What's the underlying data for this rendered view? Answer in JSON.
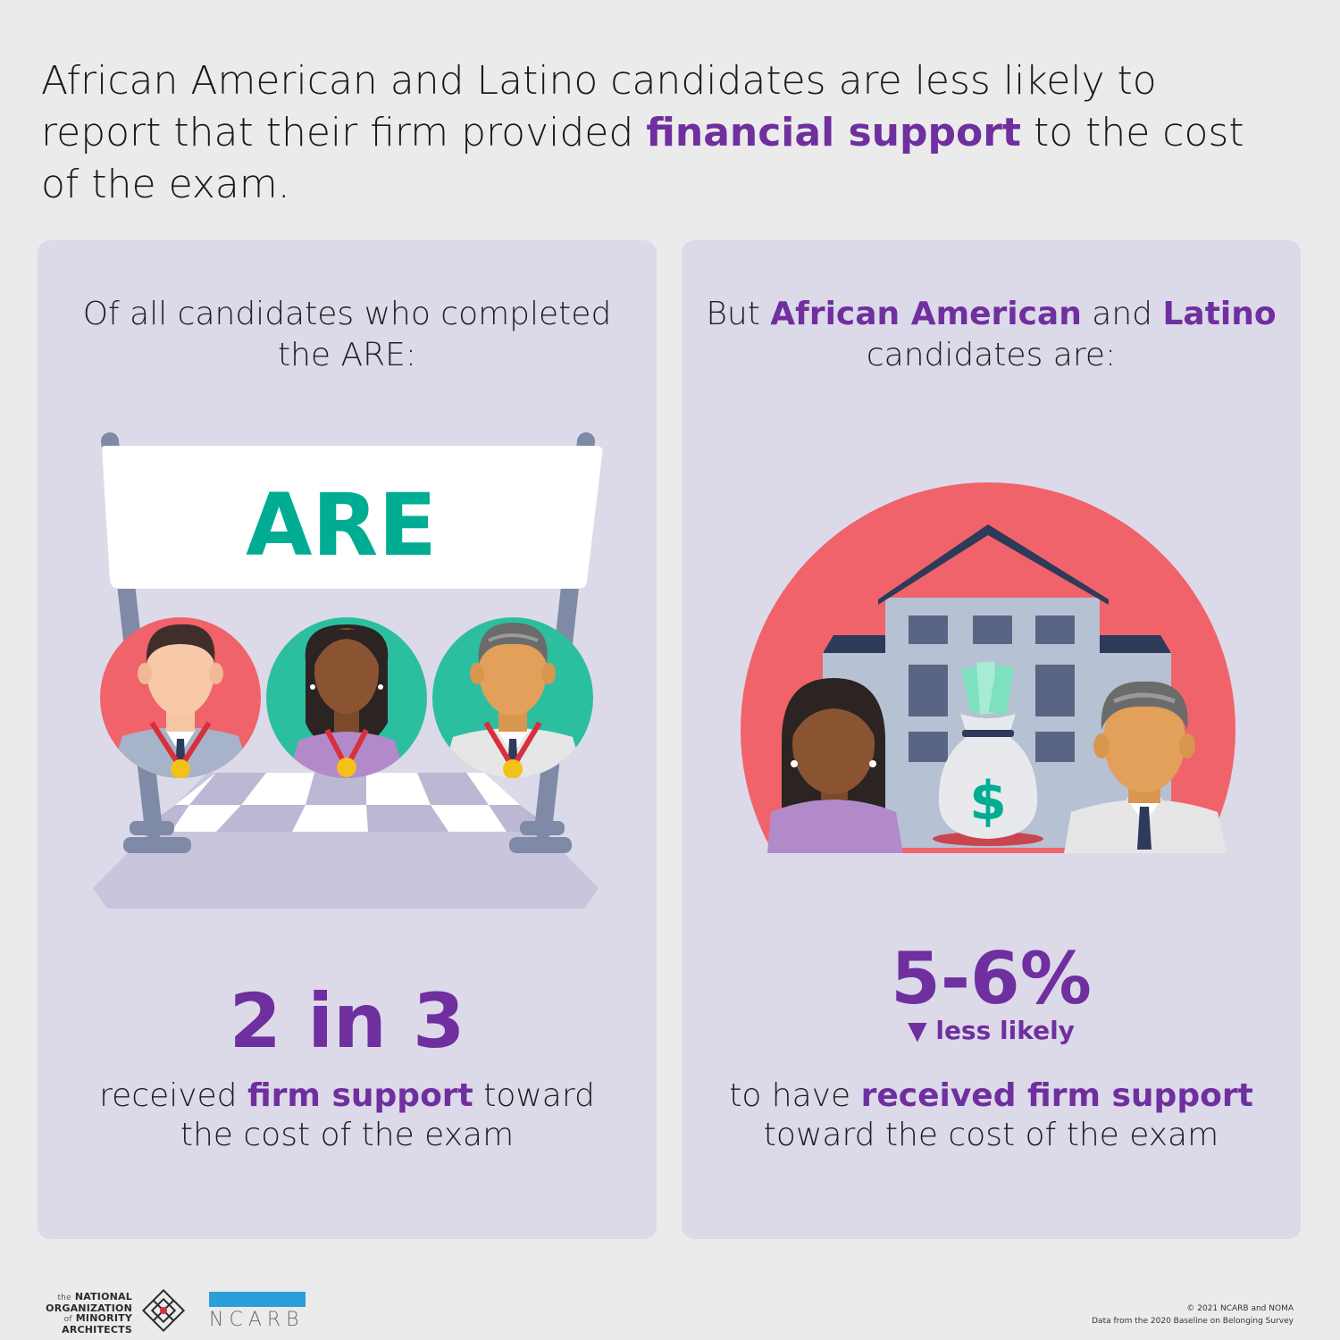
{
  "headline": {
    "line1": "African American and Latino candidates are less likely to",
    "line2_pre": "report that their firm provided ",
    "line2_highlight": "financial support",
    "line2_post": " to the cost",
    "line3": "of the exam."
  },
  "left_card": {
    "title_line1": "Of all candidates who completed",
    "title_line2": "the ARE:",
    "banner_text": "ARE",
    "stat": "2 in 3",
    "desc_line1_pre": "received ",
    "desc_line1_highlight": "firm support",
    "desc_line1_post": " toward",
    "desc_line2": "the cost of the exam"
  },
  "right_card": {
    "title_pre": "But ",
    "title_em1": "African American",
    "title_mid": " and ",
    "title_em2": "Latino",
    "title_line2": "candidates are:",
    "stat": "5-6%",
    "sub_note": "▼ less likely",
    "desc_line1_pre": "to have ",
    "desc_line1_highlight": "received firm support",
    "desc_line2": "toward the cost of the exam",
    "bag_symbol": "$"
  },
  "footer": {
    "noma_line1_small": "the",
    "noma_line1": "NATIONAL",
    "noma_line2": "ORGANIZATION",
    "noma_line3_small": "of",
    "noma_line3": "MINORITY",
    "noma_line4": "ARCHITECTS",
    "ncarb": "NCARB",
    "copyright": "© 2021 NCARB and NOMA",
    "source": "Data from the 2020 Baseline on Belonging Survey"
  },
  "colors": {
    "accent_purple": "#6f2f9f",
    "card_bg": "#dcd9e9",
    "teal": "#00ad93",
    "coral": "#f0636a"
  }
}
